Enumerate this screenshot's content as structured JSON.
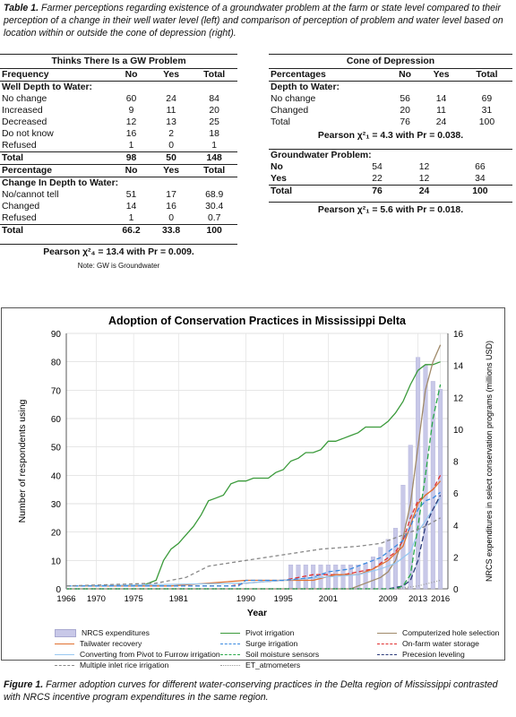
{
  "table_caption": {
    "label": "Table 1.",
    "text": "Farmer perceptions regarding existence of a groundwater problem at the farm or state level compared to their perception of a change in their well water level (left) and comparison of perception of problem and water level based on location within or outside the cone of depression (right)."
  },
  "left_table": {
    "title": "Thinks There Is a GW Problem",
    "section1": {
      "headers": [
        "Frequency",
        "No",
        "Yes",
        "Total"
      ],
      "group": "Well Depth to Water:",
      "rows": [
        [
          "No change",
          "60",
          "24",
          "84"
        ],
        [
          "Increased",
          "9",
          "11",
          "20"
        ],
        [
          "Decreased",
          "12",
          "13",
          "25"
        ],
        [
          "Do not know",
          "16",
          "2",
          "18"
        ],
        [
          "Refused",
          "1",
          "0",
          "1"
        ]
      ],
      "total": [
        "Total",
        "98",
        "50",
        "148"
      ]
    },
    "section2": {
      "headers": [
        "Percentage",
        "No",
        "Yes",
        "Total"
      ],
      "group": "Change In Depth to Water:",
      "rows": [
        [
          "No/cannot tell",
          "51",
          "17",
          "68.9"
        ],
        [
          "Changed",
          "14",
          "16",
          "30.4"
        ],
        [
          "Refused",
          "1",
          "0",
          "0.7"
        ]
      ],
      "total": [
        "Total",
        "66.2",
        "33.8",
        "100"
      ]
    },
    "pearson": "Pearson χ²₄ = 13.4 with Pr = 0.009.",
    "note": "Note: GW is Groundwater"
  },
  "right_table": {
    "title": "Cone of Depression",
    "section1": {
      "headers": [
        "Percentages",
        "No",
        "Yes",
        "Total"
      ],
      "group": "Depth to Water:",
      "rows": [
        [
          "No change",
          "56",
          "14",
          "69"
        ],
        [
          "Changed",
          "20",
          "11",
          "31"
        ],
        [
          "Total",
          "76",
          "24",
          "100"
        ]
      ],
      "pearson": "Pearson χ²₁ = 4.3 with Pr = 0.038."
    },
    "section2": {
      "group": "Groundwater Problem:",
      "rows": [
        [
          "No",
          "54",
          "12",
          "66"
        ],
        [
          "Yes",
          "22",
          "12",
          "34"
        ]
      ],
      "total": [
        "Total",
        "76",
        "24",
        "100"
      ],
      "pearson": "Pearson χ²₁ = 5.6 with Pr = 0.018."
    }
  },
  "chart_data": {
    "type": "line",
    "title": "Adoption of Conservation Practices in Mississippi Delta",
    "xlabel": "Year",
    "ylabel": "Number of respondents using",
    "y2label": "NRCS expenditures in select conservation programs (millions USD)",
    "xlim": [
      1966,
      2017
    ],
    "ylim": [
      0,
      90
    ],
    "y2lim": [
      0,
      16
    ],
    "x_ticks": [
      "1966",
      "1970",
      "1975",
      "1981",
      "1990",
      "1995",
      "2001",
      "2009",
      "2013",
      "2016"
    ],
    "x_tick_values": [
      1966,
      1970,
      1975,
      1981,
      1990,
      1995,
      2001,
      2009,
      2013,
      2016
    ],
    "y_ticks": [
      0,
      10,
      20,
      30,
      40,
      50,
      60,
      70,
      80,
      90
    ],
    "y2_ticks": [
      0,
      2,
      4,
      6,
      8,
      10,
      12,
      14,
      16
    ],
    "grid": true,
    "legend_position": "bottom",
    "bars": {
      "name": "NRCS expenditures",
      "color": "#c8c8e8",
      "x": [
        1996,
        1997,
        1998,
        1999,
        2000,
        2001,
        2002,
        2003,
        2004,
        2005,
        2006,
        2007,
        2008,
        2009,
        2010,
        2011,
        2012,
        2013,
        2014,
        2015,
        2016
      ],
      "values": [
        1.5,
        1.5,
        1.5,
        1.5,
        1.5,
        1.5,
        1.5,
        1.5,
        1.5,
        1.5,
        1.6,
        2.0,
        2.6,
        3.1,
        3.8,
        6.5,
        9.0,
        14.5,
        14.0,
        13.0,
        12.5
      ]
    },
    "series": [
      {
        "name": "Pivot irrigation",
        "color": "#3a9a3a",
        "dash": "",
        "x": [
          1966,
          1976,
          1978,
          1979,
          1980,
          1981,
          1982,
          1983,
          1984,
          1985,
          1986,
          1987,
          1988,
          1989,
          1990,
          1991,
          1992,
          1993,
          1994,
          1995,
          1996,
          1997,
          1998,
          1999,
          2000,
          2001,
          2002,
          2003,
          2004,
          2005,
          2006,
          2007,
          2008,
          2009,
          2010,
          2011,
          2012,
          2013,
          2014,
          2015,
          2016
        ],
        "y": [
          1,
          1,
          3,
          10,
          14,
          16,
          19,
          22,
          26,
          31,
          32,
          33,
          37,
          38,
          38,
          39,
          39,
          39,
          41,
          42,
          45,
          46,
          48,
          48,
          49,
          52,
          52,
          53,
          54,
          55,
          57,
          57,
          57,
          59,
          62,
          66,
          72,
          77,
          79,
          79,
          80
        ]
      },
      {
        "name": "Computerized hole selection",
        "color": "#a08a6a",
        "dash": "",
        "x": [
          1966,
          2004,
          2006,
          2008,
          2009,
          2010,
          2011,
          2012,
          2013,
          2014,
          2015,
          2016
        ],
        "y": [
          0,
          0,
          2,
          4,
          6,
          10,
          18,
          30,
          50,
          70,
          80,
          86
        ]
      },
      {
        "name": "On-farm water storage",
        "color": "#e03030",
        "dash": "5,3",
        "x": [
          1966,
          1988,
          1990,
          1995,
          1999,
          2001,
          2003,
          2005,
          2007,
          2009,
          2010,
          2011,
          2012,
          2013,
          2014,
          2015,
          2016
        ],
        "y": [
          1,
          1,
          2,
          3,
          5,
          5,
          5,
          6,
          7,
          11,
          13,
          17,
          25,
          31,
          33,
          35,
          40
        ]
      },
      {
        "name": "Tailwater recovery",
        "color": "#e07030",
        "dash": "",
        "x": [
          1966,
          1980,
          1990,
          1995,
          1999,
          2002,
          2005,
          2007,
          2009,
          2011,
          2013,
          2014,
          2015,
          2016
        ],
        "y": [
          1,
          1,
          3,
          3,
          3,
          5,
          5,
          7,
          10,
          15,
          30,
          33,
          35,
          38
        ]
      },
      {
        "name": "Converting from Pivot to Furrow irrigation",
        "color": "#98c8f0",
        "dash": "",
        "x": [
          1966,
          1990,
          1995,
          2000,
          2005,
          2008,
          2010,
          2012,
          2013,
          2014,
          2015,
          2016
        ],
        "y": [
          1,
          2,
          3,
          4,
          5,
          7,
          9,
          13,
          20,
          24,
          28,
          32
        ]
      },
      {
        "name": "Surge irrigation",
        "color": "#3a8ae0",
        "dash": "5,3",
        "x": [
          1966,
          1989,
          1990,
          1995,
          1999,
          2001,
          2004,
          2006,
          2008,
          2009,
          2010,
          2011,
          2012,
          2013,
          2014,
          2015,
          2016
        ],
        "y": [
          1,
          1,
          3,
          3,
          4,
          6,
          7,
          9,
          11,
          13,
          15,
          17,
          22,
          28,
          31,
          32,
          34
        ]
      },
      {
        "name": "Precesion leveling",
        "color": "#2a3a7a",
        "dash": "6,3",
        "x": [
          1966,
          2009,
          2011,
          2012,
          2013,
          2014,
          2015,
          2016
        ],
        "y": [
          0,
          0,
          1,
          3,
          10,
          22,
          28,
          33
        ]
      },
      {
        "name": "Soil moisture sensors",
        "color": "#2aa84a",
        "dash": "6,3",
        "x": [
          1966,
          2010,
          2011,
          2012,
          2013,
          2014,
          2015,
          2016
        ],
        "y": [
          0,
          0,
          1,
          5,
          22,
          40,
          60,
          72
        ]
      },
      {
        "name": "Multiple inlet rice irrigation",
        "color": "#888888",
        "dash": "4,3",
        "x": [
          1966,
          1978,
          1982,
          1985,
          1990,
          1995,
          2000,
          2005,
          2008,
          2010,
          2012,
          2014,
          2016
        ],
        "y": [
          1,
          2,
          4,
          8,
          10,
          12,
          14,
          15,
          16,
          18,
          20,
          22,
          25
        ]
      },
      {
        "name": "ET_atmometers",
        "color": "#999999",
        "dash": "1,2",
        "x": [
          1966,
          2010,
          2013,
          2016
        ],
        "y": [
          0,
          0,
          1,
          3
        ]
      }
    ]
  },
  "figure_caption": {
    "label": "Figure 1.",
    "text": "Farmer adoption curves for different water-conserving practices in the Delta region of Mississippi contrasted with NRCS incentive program expenditures in the same region."
  }
}
